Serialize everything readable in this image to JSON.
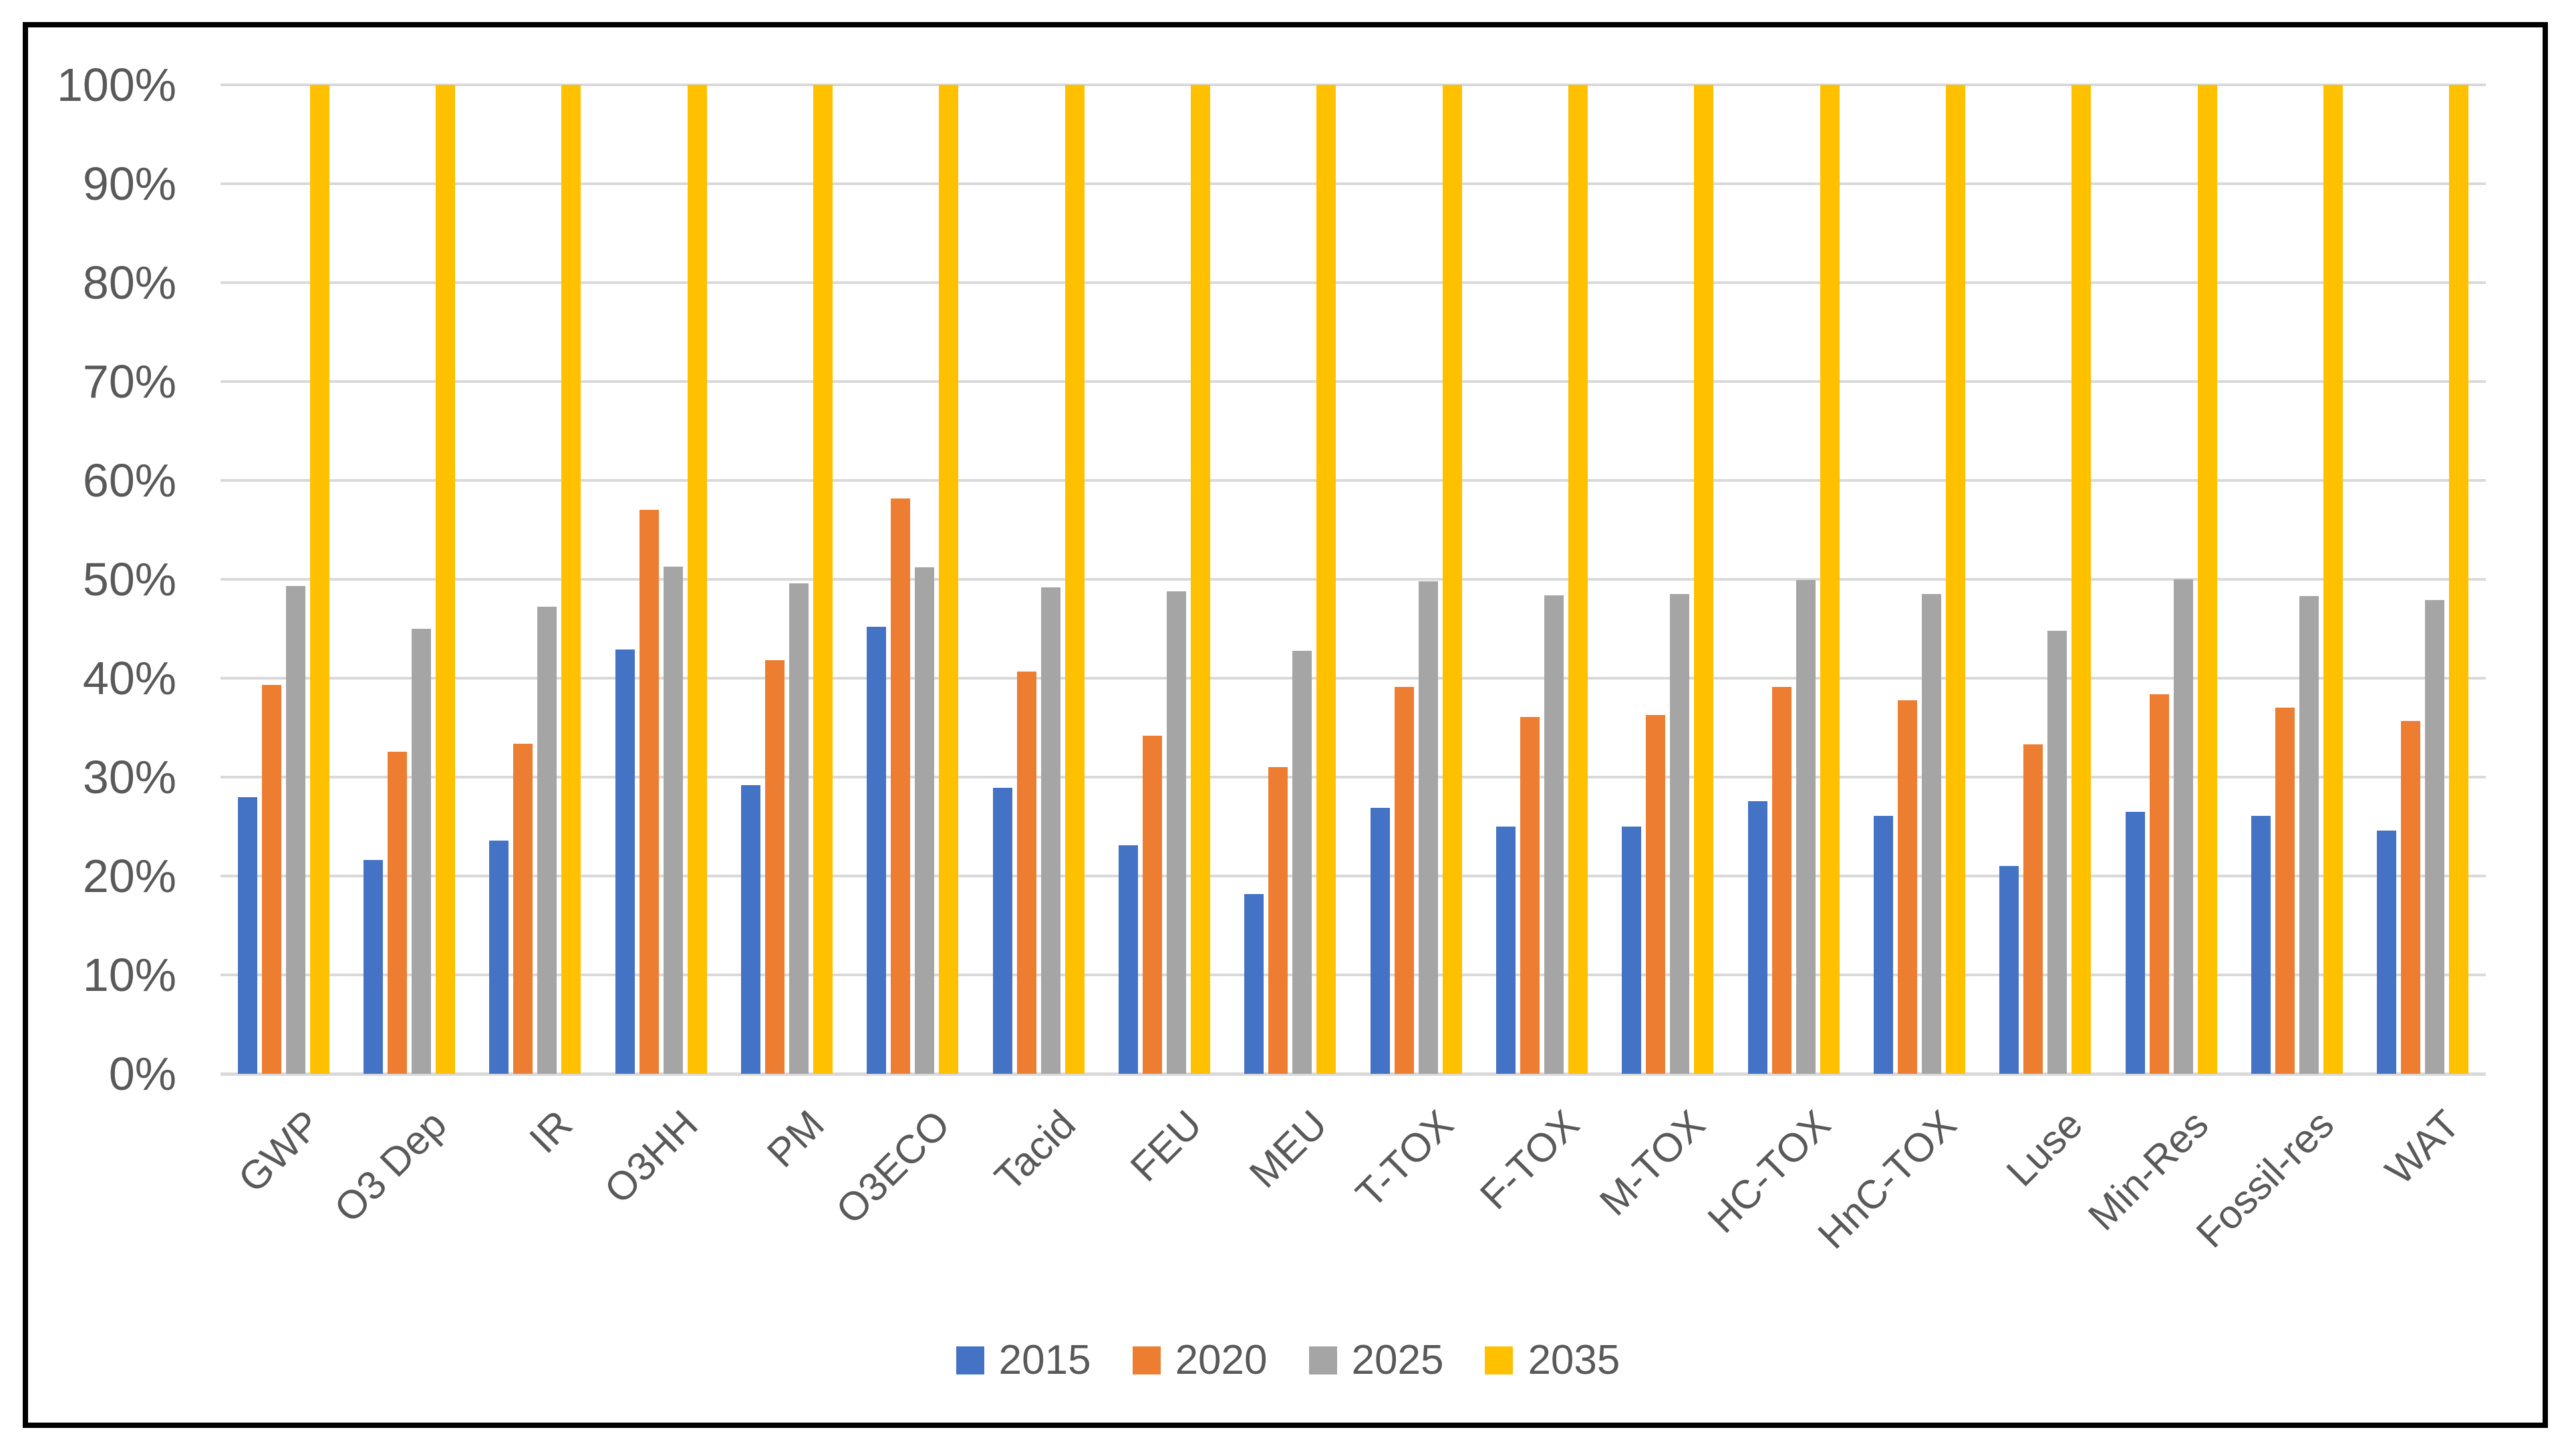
{
  "chart_data": {
    "type": "bar",
    "title": "",
    "xlabel": "",
    "ylabel": "",
    "categories": [
      "GWP",
      "O3 Dep",
      "IR",
      "O3HH",
      "PM",
      "O3ECO",
      "Tacid",
      "FEU",
      "MEU",
      "T-TOX",
      "F-TOX",
      "M-TOX",
      "HC-TOX",
      "HnC-TOX",
      "Luse",
      "Min-Res",
      "Fossil-res",
      "WAT"
    ],
    "series": [
      {
        "name": "2015",
        "color": "#4472C4",
        "values": [
          28.0,
          21.6,
          23.6,
          42.9,
          29.2,
          45.2,
          28.9,
          23.1,
          18.2,
          26.9,
          25.0,
          25.0,
          27.6,
          26.1,
          21.0,
          26.5,
          26.1,
          24.6
        ]
      },
      {
        "name": "2020",
        "color": "#ED7D31",
        "values": [
          39.3,
          32.6,
          33.4,
          57.0,
          41.8,
          58.2,
          40.7,
          34.2,
          31.0,
          39.1,
          36.1,
          36.3,
          39.1,
          37.8,
          33.3,
          38.4,
          37.0,
          35.7
        ]
      },
      {
        "name": "2025",
        "color": "#A5A5A5",
        "values": [
          49.3,
          45.0,
          47.2,
          51.3,
          49.6,
          51.2,
          49.2,
          48.8,
          42.8,
          49.8,
          48.4,
          48.5,
          49.9,
          48.5,
          44.8,
          50.0,
          48.3,
          47.9
        ]
      },
      {
        "name": "2035",
        "color": "#FFC000",
        "values": [
          100,
          100,
          100,
          100,
          100,
          100,
          100,
          100,
          100,
          100,
          100,
          100,
          100,
          100,
          100,
          100,
          100,
          100
        ]
      }
    ],
    "y_axis": {
      "min": 0,
      "max": 100,
      "step": 10,
      "tick_labels": [
        "0%",
        "10%",
        "20%",
        "30%",
        "40%",
        "50%",
        "60%",
        "70%",
        "80%",
        "90%",
        "100%"
      ]
    },
    "grid": true,
    "legend_position": "bottom",
    "legend_entries": [
      "2015",
      "2020",
      "2025",
      "2035"
    ]
  },
  "style": {
    "gridline_color": "#D9D9D9",
    "text_color": "#595959",
    "frame_color": "#000000",
    "background": "#ffffff"
  }
}
